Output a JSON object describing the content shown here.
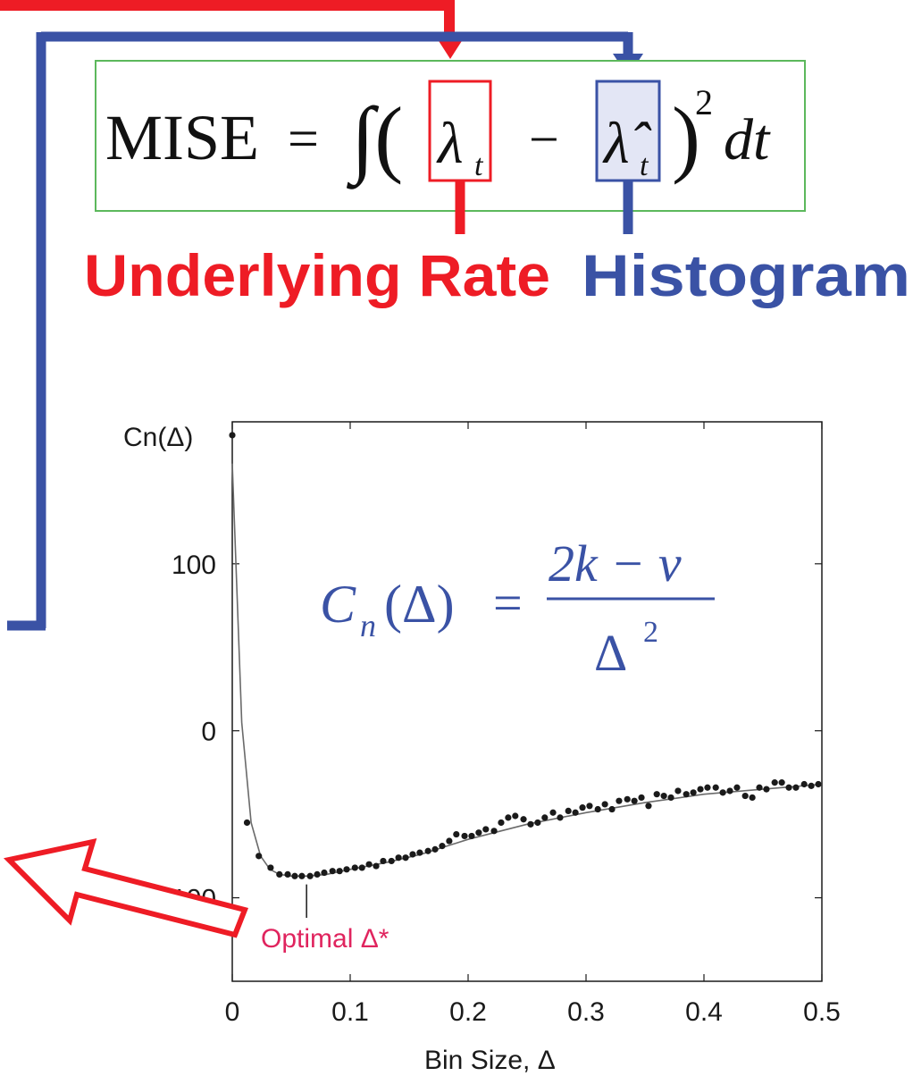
{
  "colors": {
    "red": "#ee1c25",
    "blue": "#3a52a5",
    "frame_green": "#5cb85c",
    "hat_box_fill": "#e3e6f5",
    "chart_ink": "#1a1a1a",
    "formula_blue": "#3a52a5",
    "optimal_label": "#e0245e"
  },
  "equation": {
    "lhs": "MISE",
    "equals": "=",
    "integral": "∫(",
    "lambda": "λ",
    "subscript": "t",
    "minus": "−",
    "lambda_hat": "λ̂",
    "close": ")",
    "power": "2",
    "dt": "dt"
  },
  "labels": {
    "underlying_rate": "Underlying Rate",
    "histogram": "Histogram"
  },
  "formula": {
    "lhs_c": "C",
    "lhs_sub": "n",
    "lhs_arg": "(Δ)",
    "equals": "=",
    "numerator": "2k − v",
    "denominator": "Δ",
    "denominator_power": "2"
  },
  "chart_data": {
    "type": "scatter",
    "ylabel": "Cn(Δ)",
    "xlabel": "Bin Size, Δ",
    "xlim": [
      0,
      0.5
    ],
    "ylim": [
      -150,
      185
    ],
    "xticks": [
      0,
      0.1,
      0.2,
      0.3,
      0.4,
      0.5
    ],
    "xtick_labels": [
      "0",
      "0.1",
      "0.2",
      "0.3",
      "0.4",
      "0.5"
    ],
    "yticks": [
      -100,
      0,
      100
    ],
    "ytick_labels": [
      "-100",
      "0",
      "100"
    ],
    "annotation": {
      "text": "Optimal Δ*",
      "x": 0.063
    },
    "series": [
      {
        "kind": "points",
        "x": [
          0.0,
          0.0125,
          0.0225,
          0.0325,
          0.04,
          0.047,
          0.053,
          0.059,
          0.066,
          0.072,
          0.078,
          0.085,
          0.091,
          0.097,
          0.104,
          0.11,
          0.116,
          0.122,
          0.128,
          0.135,
          0.141,
          0.147,
          0.153,
          0.159,
          0.166,
          0.172,
          0.178,
          0.184,
          0.19,
          0.197,
          0.203,
          0.209,
          0.215,
          0.222,
          0.228,
          0.234,
          0.24,
          0.247,
          0.253,
          0.259,
          0.265,
          0.272,
          0.278,
          0.285,
          0.291,
          0.297,
          0.303,
          0.31,
          0.316,
          0.322,
          0.328,
          0.335,
          0.341,
          0.347,
          0.353,
          0.36,
          0.366,
          0.372,
          0.378,
          0.385,
          0.391,
          0.397,
          0.403,
          0.41,
          0.416,
          0.422,
          0.428,
          0.435,
          0.441,
          0.447,
          0.453,
          0.46,
          0.466,
          0.472,
          0.478,
          0.485,
          0.491,
          0.497
        ],
        "y": [
          177,
          -55,
          -75,
          -82,
          -86,
          -86,
          -87,
          -87,
          -87,
          -86,
          -85,
          -84,
          -84,
          -83,
          -82,
          -82,
          -80,
          -81,
          -78,
          -78,
          -76,
          -76,
          -74,
          -73,
          -72,
          -71,
          -69,
          -66,
          -62,
          -63,
          -63,
          -61,
          -59,
          -60,
          -55,
          -52,
          -51,
          -53,
          -56,
          -55,
          -52,
          -49,
          -52,
          -48,
          -49,
          -46,
          -45,
          -47,
          -44,
          -47,
          -42,
          -41,
          -42,
          -40,
          -45,
          -38,
          -39,
          -40,
          -36,
          -38,
          -37,
          -35,
          -34,
          -34,
          -37,
          -36,
          -34,
          -39,
          -40,
          -34,
          -35,
          -31,
          -31,
          -34,
          -34,
          -32,
          -33,
          -32
        ]
      },
      {
        "kind": "fit",
        "x": [
          0.0,
          0.008,
          0.016,
          0.024,
          0.032,
          0.04,
          0.05,
          0.063,
          0.08,
          0.1,
          0.13,
          0.16,
          0.2,
          0.25,
          0.3,
          0.35,
          0.4,
          0.45,
          0.5
        ],
        "y": [
          160,
          5,
          -55,
          -75,
          -83,
          -86,
          -87,
          -87,
          -86,
          -83,
          -79,
          -74,
          -65,
          -56,
          -49,
          -43,
          -38,
          -35,
          -32
        ]
      }
    ]
  }
}
